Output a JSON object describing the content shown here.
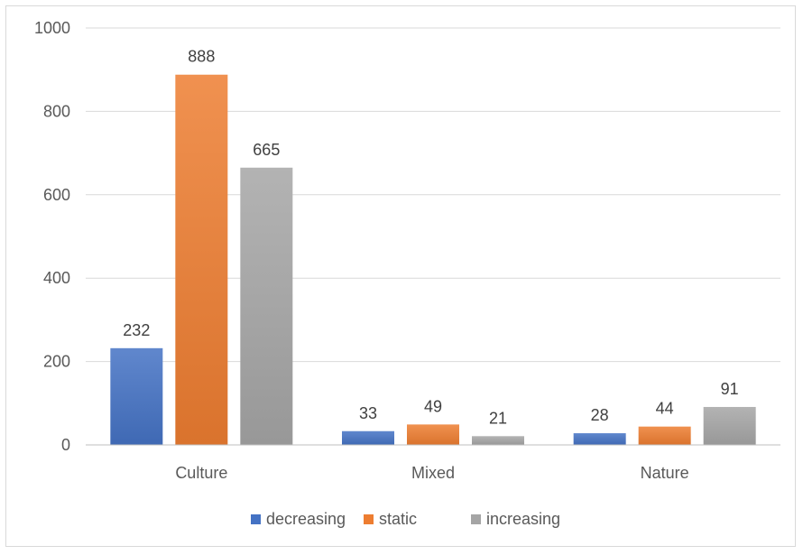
{
  "chart_data": {
    "type": "bar",
    "title": "",
    "xlabel": "",
    "ylabel": "",
    "categories": [
      "Culture",
      "Mixed",
      "Nature"
    ],
    "series": [
      {
        "name": "decreasing",
        "values": [
          232,
          33,
          28
        ],
        "color": "#4472c4"
      },
      {
        "name": "static",
        "values": [
          888,
          49,
          44
        ],
        "color": "#ed7d31"
      },
      {
        "name": "increasing",
        "values": [
          665,
          21,
          91
        ],
        "color": "#a5a5a5"
      }
    ],
    "ylim": [
      0,
      1000
    ],
    "yticks": [
      0,
      200,
      400,
      600,
      800,
      1000
    ],
    "ytick_labels": [
      "0",
      "200",
      "400",
      "600",
      "800",
      "1000"
    ],
    "grid": true,
    "legend_position": "bottom",
    "gridline_color": "#d9d9d9",
    "axis_color": "#bfbfbf"
  }
}
